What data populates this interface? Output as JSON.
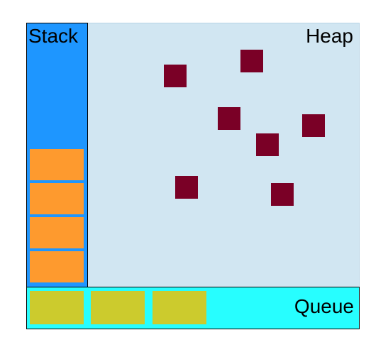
{
  "title": "",
  "regions": {
    "stack": {
      "label": "Stack",
      "color": "#1e96ff"
    },
    "heap": {
      "label": "Heap",
      "color": "#d1e6f2"
    },
    "queue": {
      "label": "Queue",
      "color": "#27feff"
    }
  },
  "elements": {
    "stack_frames": {
      "count": 4,
      "color": "#fe9a2e"
    },
    "heap_objects": {
      "count": 7,
      "color": "#7a0026"
    },
    "queue_messages": {
      "count": 3,
      "color": "#cccb2d"
    }
  }
}
